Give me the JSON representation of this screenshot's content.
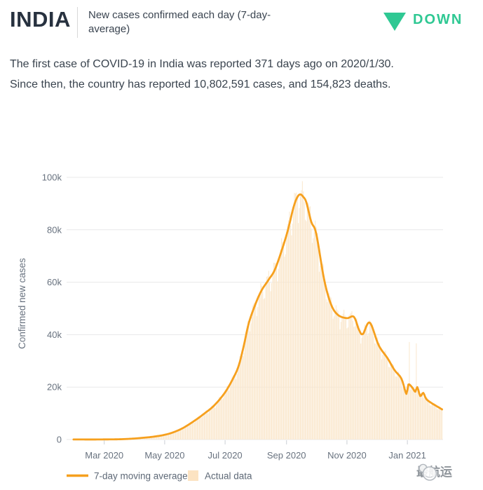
{
  "header": {
    "country": "INDIA",
    "subtitle": "New cases confirmed each day (7-day-average)",
    "trend_label": "DOWN",
    "trend_color": "#2FC893"
  },
  "summary": "The first case of COVID-19 in India was reported 371 days ago on 2020/1/30. Since then, the country has reported 10,802,591 cases, and 154,823 deaths.",
  "watermark": {
    "text": "最航运"
  },
  "colors": {
    "line": "#F6A01E",
    "bar": "#FAE7CC",
    "legend_bar_swatch": "#FCE3C2",
    "grid": "#E8E8EA",
    "tick": "#CBCFD4",
    "axis_text": "#68727F",
    "title_navy": "#27313F",
    "trend_green": "#2FC893"
  },
  "chart_data": {
    "type": "line",
    "title": "New cases confirmed each day (7-day-average) — India",
    "ylabel": "Confirmed new cases",
    "xlabel": "",
    "ylim": [
      0,
      100000
    ],
    "grid": "horizontal-only",
    "legend_position": "bottom-left",
    "y_ticks": [
      "0",
      "20k",
      "40k",
      "60k",
      "80k",
      "100k"
    ],
    "y_tick_values": [
      0,
      20000,
      40000,
      60000,
      80000,
      100000
    ],
    "x_range": [
      "2020-01-23",
      "2021-02-06"
    ],
    "x_ticks": [
      {
        "label": "Mar 2020",
        "date": "2020-03-01"
      },
      {
        "label": "May 2020",
        "date": "2020-05-01"
      },
      {
        "label": "Jul 2020",
        "date": "2020-07-01"
      },
      {
        "label": "Sep 2020",
        "date": "2020-09-01"
      },
      {
        "label": "Nov 2020",
        "date": "2020-11-01"
      },
      {
        "label": "Jan 2021",
        "date": "2021-01-01"
      }
    ],
    "legend": [
      {
        "label": "7-day moving average",
        "type": "line",
        "color": "#F6A01E"
      },
      {
        "label": "Actual data",
        "type": "square",
        "color": "#FCE3C2"
      }
    ],
    "average_series": [
      [
        "2020-01-30",
        30
      ],
      [
        "2020-02-20",
        20
      ],
      [
        "2020-03-01",
        50
      ],
      [
        "2020-03-10",
        70
      ],
      [
        "2020-03-20",
        150
      ],
      [
        "2020-04-01",
        400
      ],
      [
        "2020-04-10",
        700
      ],
      [
        "2020-04-20",
        1100
      ],
      [
        "2020-05-01",
        1800
      ],
      [
        "2020-05-10",
        2800
      ],
      [
        "2020-05-20",
        4500
      ],
      [
        "2020-06-01",
        7400
      ],
      [
        "2020-06-10",
        9900
      ],
      [
        "2020-06-20",
        13000
      ],
      [
        "2020-07-01",
        18000
      ],
      [
        "2020-07-10",
        24000
      ],
      [
        "2020-07-15",
        28500
      ],
      [
        "2020-07-20",
        36000
      ],
      [
        "2020-07-25",
        44500
      ],
      [
        "2020-08-01",
        52000
      ],
      [
        "2020-08-07",
        57000
      ],
      [
        "2020-08-14",
        61000
      ],
      [
        "2020-08-21",
        65500
      ],
      [
        "2020-09-01",
        78000
      ],
      [
        "2020-09-08",
        88500
      ],
      [
        "2020-09-12",
        92500
      ],
      [
        "2020-09-15",
        93500
      ],
      [
        "2020-09-18",
        92500
      ],
      [
        "2020-09-21",
        90500
      ],
      [
        "2020-09-26",
        83000
      ],
      [
        "2020-10-01",
        78500
      ],
      [
        "2020-10-09",
        61000
      ],
      [
        "2020-10-16",
        51500
      ],
      [
        "2020-10-23",
        47500
      ],
      [
        "2020-11-01",
        46300
      ],
      [
        "2020-11-08",
        46800
      ],
      [
        "2020-11-13",
        42000
      ],
      [
        "2020-11-17",
        40200
      ],
      [
        "2020-11-24",
        44600
      ],
      [
        "2020-12-03",
        36000
      ],
      [
        "2020-12-12",
        31000
      ],
      [
        "2020-12-19",
        26500
      ],
      [
        "2020-12-26",
        23200
      ],
      [
        "2020-12-31",
        17400
      ],
      [
        "2021-01-02",
        21000
      ],
      [
        "2021-01-06",
        19800
      ],
      [
        "2021-01-09",
        18200
      ],
      [
        "2021-01-11",
        20000
      ],
      [
        "2021-01-14",
        16600
      ],
      [
        "2021-01-17",
        17800
      ],
      [
        "2021-01-20",
        15500
      ],
      [
        "2021-01-25",
        14000
      ],
      [
        "2021-02-01",
        12400
      ],
      [
        "2021-02-05",
        11500
      ]
    ],
    "actual_bars": {
      "derived_from": "average_series",
      "weekly_factors_sun_to_sat": [
        0.92,
        0.94,
        0.99,
        1.02,
        1.035,
        1.04,
        1.0
      ],
      "noise_amplitudes": [
        0.018,
        0.015
      ],
      "anomalies": [
        [
          "2021-01-03",
          37200
        ],
        [
          "2021-01-10",
          36700
        ]
      ]
    }
  }
}
